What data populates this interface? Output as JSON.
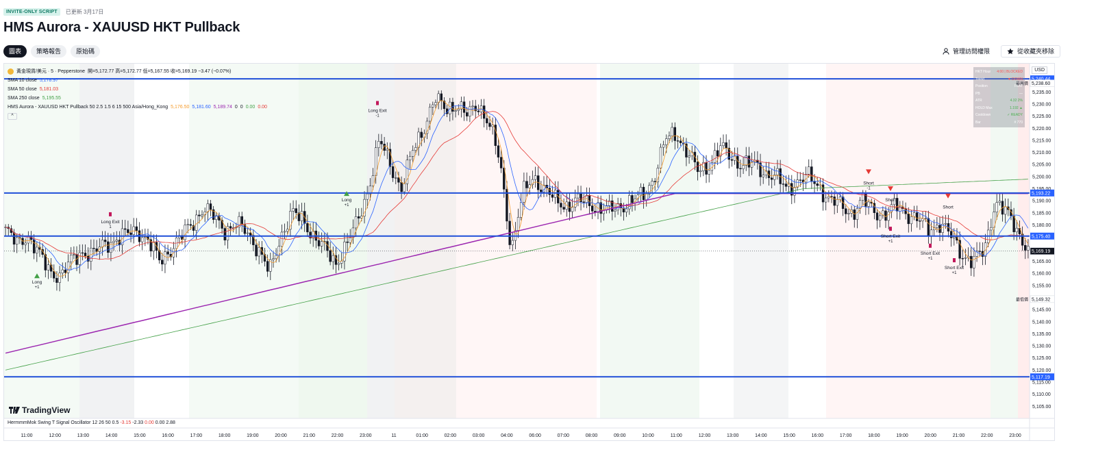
{
  "header": {
    "badge": "INVITE-ONLY SCRIPT",
    "updated": "已更新 3月17日",
    "title": "HMS Aurora - XAUUSD HKT Pullback",
    "tabs": [
      "圖表",
      "策略報告",
      "原始碼"
    ],
    "manage_access": "管理訪問權限",
    "remove_favorite": "從收藏夾移除"
  },
  "legend": {
    "symbol": "黃金現貨/美元 · 5 · Pepperstone",
    "ohlc": "開=5,172.77 高=5,172.77 低=5,167.55 收=5,169.19 −3.47 (−0.07%)",
    "sma10_label": "SMA 10 close",
    "sma10_value": "5,178.97",
    "sma50_label": "SMA 50 close",
    "sma50_value": "5,181.03",
    "sma250_label": "SMA 250 close",
    "sma250_value": "5,195.55",
    "strategy_label": "HMS Aurora - XAUUSD HKT Pullback 50 2.5 1.5 6 15 500 Asia/Hong_Kong",
    "strategy_v1": "5,176.50",
    "strategy_v2": "5,181.60",
    "strategy_v3": "5,189.74",
    "strategy_v4": "0",
    "strategy_v5": "0",
    "strategy_v6": "0.00",
    "strategy_v7": "0.00",
    "collapse": "^"
  },
  "logo": "TradingView",
  "oscillator": {
    "label": "HermmmMok Swing T Signal Oscillator 12 26 50 0.5",
    "v1": "-3.15",
    "v2": "-2.33",
    "v3": "0.00",
    "v4": "0.00",
    "v5": "2.88"
  },
  "currency": "USD",
  "status_table": {
    "rows": [
      {
        "k": "HKT Hour",
        "v": "4:00 | BLOCKED"
      },
      {
        "k": "Trend",
        "v": "▼ DOWN"
      },
      {
        "k": "Position",
        "v": "FLAT"
      },
      {
        "k": "PB",
        "v": "—"
      },
      {
        "k": "ATR",
        "v": "4.32 2%"
      },
      {
        "k": "HOLD Max",
        "v": "1.192 ▲"
      },
      {
        "k": "Cooldown",
        "v": "✓ READY"
      },
      {
        "k": "Bar",
        "v": "# 770"
      }
    ]
  },
  "chart_data": {
    "type": "candlestick",
    "symbol": "XAUUSD 5m",
    "ylim": [
      5100,
      5245
    ],
    "y_ticks": [
      "5,105.00",
      "5,110.00",
      "5,115.00",
      "5,120.00",
      "5,125.00",
      "5,130.00",
      "5,135.00",
      "5,140.00",
      "5,145.00",
      "5,150.00",
      "5,155.00",
      "5,160.00",
      "5,165.00",
      "5,170.00",
      "5,175.00",
      "5,180.00",
      "5,185.00",
      "5,190.00",
      "5,195.00",
      "5,200.00",
      "5,205.00",
      "5,210.00",
      "5,215.00",
      "5,220.00",
      "5,225.00",
      "5,230.00",
      "5,235.00",
      "5,240.00"
    ],
    "x_ticks": [
      "11:00",
      "12:00",
      "13:00",
      "14:00",
      "15:00",
      "16:00",
      "17:00",
      "18:00",
      "19:00",
      "20:00",
      "21:00",
      "22:00",
      "23:00",
      "11",
      "01:00",
      "02:00",
      "03:00",
      "04:00",
      "06:00",
      "07:00",
      "08:00",
      "09:00",
      "10:00",
      "11:00",
      "12:00",
      "13:00",
      "14:00",
      "15:00",
      "16:00",
      "17:00",
      "18:00",
      "19:00",
      "20:00",
      "21:00",
      "22:00",
      "23:00"
    ],
    "horizontal_lines": [
      {
        "price": 5240.44,
        "label": "5,240.44"
      },
      {
        "price": 5193.22,
        "label": "5,193.22"
      },
      {
        "price": 5175.4,
        "label": "5,175.40"
      },
      {
        "price": 5117.19,
        "label": "5,117.19"
      }
    ],
    "price_tags": [
      {
        "price": 5238.6,
        "label": "5,238.60",
        "note": "最高價"
      },
      {
        "price": 5169.19,
        "label": "5,169.19",
        "note": ""
      },
      {
        "price": 5149.32,
        "label": "5,149.32",
        "note": "最低價"
      }
    ],
    "close_path": [
      5178,
      5172,
      5176,
      5168,
      5161,
      5159,
      5165,
      5169,
      5168,
      5172,
      5174,
      5176,
      5178,
      5173,
      5165,
      5170,
      5175,
      5181,
      5187,
      5183,
      5178,
      5180,
      5177,
      5170,
      5160,
      5175,
      5185,
      5182,
      5176,
      5170,
      5164,
      5172,
      5181,
      5195,
      5215,
      5205,
      5195,
      5210,
      5220,
      5232,
      5228,
      5230,
      5225,
      5230,
      5222,
      5205,
      5170,
      5192,
      5200,
      5195,
      5190,
      5188,
      5190,
      5189,
      5187,
      5186,
      5188,
      5190,
      5192,
      5200,
      5215,
      5218,
      5210,
      5202,
      5205,
      5212,
      5208,
      5205,
      5205,
      5202,
      5200,
      5195,
      5198,
      5200,
      5196,
      5190,
      5188,
      5185,
      5190,
      5186,
      5184,
      5188,
      5185,
      5182,
      5178,
      5181,
      5175,
      5168,
      5165,
      5169,
      5190,
      5185,
      5178,
      5170
    ],
    "signals": [
      {
        "text": "Long",
        "sub": "+1"
      },
      {
        "text": "Long Exit",
        "sub": "1"
      },
      {
        "text": "Long",
        "sub": "+1"
      },
      {
        "text": "Long Exit",
        "sub": "-1"
      },
      {
        "text": "Short",
        "sub": "-1"
      },
      {
        "text": "Short",
        "sub": ""
      },
      {
        "text": "Short",
        "sub": ""
      },
      {
        "text": "Short Exit",
        "sub": "+1"
      },
      {
        "text": "Short Exit",
        "sub": "+1"
      },
      {
        "text": "Short Exit",
        "sub": "+1"
      }
    ],
    "series": [
      {
        "name": "SMA 10 close",
        "color": "#2962ff"
      },
      {
        "name": "SMA 50 close",
        "color": "#e53935"
      },
      {
        "name": "SMA 250 close",
        "color": "#43a047"
      }
    ],
    "colors": {
      "up": "#131722",
      "down": "#131722",
      "purple_ma": "#9c27b0",
      "hline": "#1f4fd8"
    }
  }
}
